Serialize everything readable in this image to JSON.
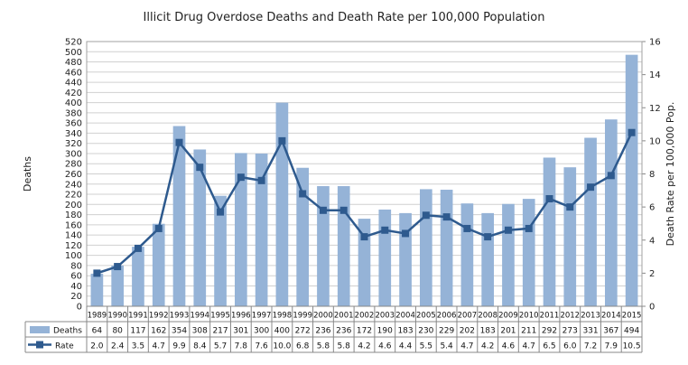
{
  "chart_data": {
    "type": "bar",
    "title": "Illicit Drug Overdose Deaths and Death Rate per 100,000 Population",
    "categories": [
      "1989",
      "1990",
      "1991",
      "1992",
      "1993",
      "1994",
      "1995",
      "1996",
      "1997",
      "1998",
      "1999",
      "2000",
      "2001",
      "2002",
      "2003",
      "2004",
      "2005",
      "2006",
      "2007",
      "2008",
      "2009",
      "2010",
      "2011",
      "2012",
      "2013",
      "2014",
      "2015"
    ],
    "ylabel": "Deaths",
    "y2label": "Death Rate per 100,000 Pop.",
    "ylim": [
      0,
      520
    ],
    "y2lim": [
      0,
      16
    ],
    "yticks": [
      "0",
      "20",
      "40",
      "60",
      "80",
      "100",
      "120",
      "140",
      "160",
      "180",
      "200",
      "220",
      "240",
      "260",
      "280",
      "300",
      "320",
      "340",
      "360",
      "380",
      "400",
      "420",
      "440",
      "460",
      "480",
      "500",
      "520"
    ],
    "y2ticks": [
      "0",
      "2",
      "4",
      "6",
      "8",
      "10",
      "12",
      "14",
      "16"
    ],
    "grid": true,
    "legend": "data-table",
    "series": [
      {
        "name": "Deaths",
        "kind": "bar",
        "color": "#95b3d7",
        "values": [
          64,
          80,
          117,
          162,
          354,
          308,
          217,
          301,
          300,
          400,
          272,
          236,
          236,
          172,
          190,
          183,
          230,
          229,
          202,
          183,
          201,
          211,
          292,
          273,
          331,
          367,
          494
        ],
        "labels": [
          "64",
          "80",
          "117",
          "162",
          "354",
          "308",
          "217",
          "301",
          "300",
          "400",
          "272",
          "236",
          "236",
          "172",
          "190",
          "183",
          "230",
          "229",
          "202",
          "183",
          "201",
          "211",
          "292",
          "273",
          "331",
          "367",
          "494"
        ]
      },
      {
        "name": "Rate",
        "kind": "line",
        "axis": "right",
        "color": "#2e5a8e",
        "values": [
          2.0,
          2.4,
          3.5,
          4.7,
          9.9,
          8.4,
          5.7,
          7.8,
          7.6,
          10.0,
          6.8,
          5.8,
          5.8,
          4.2,
          4.6,
          4.4,
          5.5,
          5.4,
          4.7,
          4.2,
          4.6,
          4.7,
          6.5,
          6.0,
          7.2,
          7.9,
          10.5
        ],
        "labels": [
          "2.0",
          "2.4",
          "3.5",
          "4.7",
          "9.9",
          "8.4",
          "5.7",
          "7.8",
          "7.6",
          "10.0",
          "6.8",
          "5.8",
          "5.8",
          "4.2",
          "4.6",
          "4.4",
          "5.5",
          "5.4",
          "4.7",
          "4.2",
          "4.6",
          "4.7",
          "6.5",
          "6.0",
          "7.2",
          "7.9",
          "10.5"
        ]
      }
    ]
  }
}
